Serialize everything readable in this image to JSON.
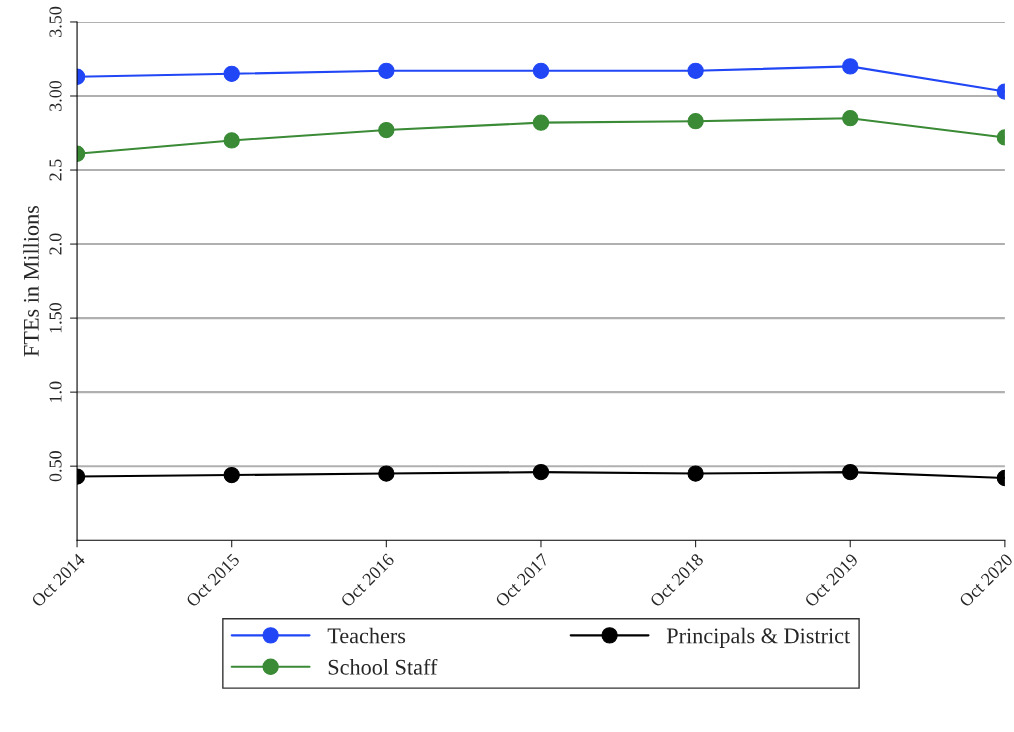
{
  "chart_data": {
    "type": "line",
    "ylabel": "FTEs in Millions",
    "categories": [
      "Oct 2014",
      "Oct 2015",
      "Oct 2016",
      "Oct 2017",
      "Oct 2018",
      "Oct 2019",
      "Oct 2020"
    ],
    "series": [
      {
        "name": "Teachers",
        "color": "#2146f5",
        "values": [
          3.13,
          3.15,
          3.17,
          3.17,
          3.17,
          3.2,
          3.03
        ]
      },
      {
        "name": "School Staff",
        "color": "#3a8a36",
        "values": [
          2.61,
          2.7,
          2.77,
          2.82,
          2.83,
          2.85,
          2.72
        ]
      },
      {
        "name": "Principals & District",
        "color": "#000000",
        "values": [
          0.43,
          0.44,
          0.45,
          0.46,
          0.45,
          0.46,
          0.42
        ]
      }
    ],
    "ylim": [
      0,
      3.5
    ],
    "yticks": [
      {
        "value": 0.5,
        "label": "0.50"
      },
      {
        "value": 1.0,
        "label": "1.0"
      },
      {
        "value": 1.5,
        "label": "1.50"
      },
      {
        "value": 2.0,
        "label": "2.0"
      },
      {
        "value": 2.5,
        "label": "2.5"
      },
      {
        "value": 3.0,
        "label": "3.00"
      },
      {
        "value": 3.5,
        "label": "3.50"
      }
    ],
    "grid": "y",
    "legend": "bottom",
    "marker": "circle",
    "line_style": "solid"
  }
}
